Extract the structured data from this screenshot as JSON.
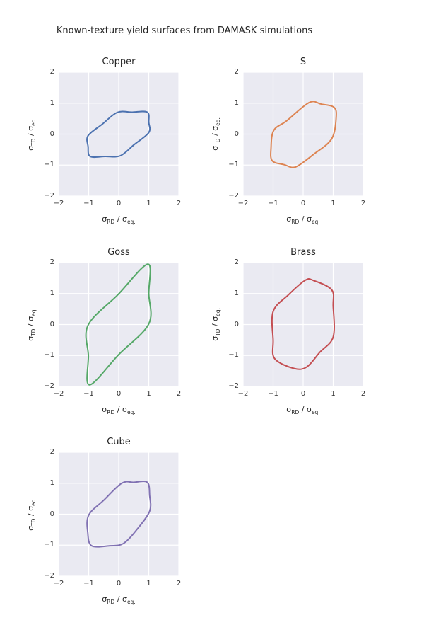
{
  "figure_title": "Known-texture yield surfaces from DAMASK simulations",
  "style": {
    "page_bg": "#ffffff",
    "plot_bg": "#eaeaf2",
    "grid_color": "#ffffff",
    "title_color": "#262626",
    "tick_color": "#333333"
  },
  "chart_data": [
    {
      "type": "line",
      "title": "Copper",
      "color": "#4c72b0",
      "xlabel": "σ_RD / σ_eq.",
      "ylabel": "σ_TD / σ_eq.",
      "xlim": [
        -2,
        2
      ],
      "ylim": [
        -2,
        2
      ],
      "xticks": [
        -2,
        -1,
        0,
        1,
        2
      ],
      "yticks": [
        -2,
        -1,
        0,
        1,
        2
      ],
      "grid": true,
      "legend": false,
      "closed_curve": true,
      "points": [
        [
          -1.02,
          -0.05
        ],
        [
          -0.55,
          0.32
        ],
        [
          -0.05,
          0.7
        ],
        [
          0.45,
          0.71
        ],
        [
          0.95,
          0.71
        ],
        [
          1.0,
          0.38
        ],
        [
          1.0,
          0.05
        ],
        [
          0.5,
          -0.35
        ],
        [
          0.05,
          -0.7
        ],
        [
          -0.45,
          -0.72
        ],
        [
          -0.95,
          -0.72
        ],
        [
          -1.02,
          -0.4
        ]
      ]
    },
    {
      "type": "line",
      "title": "S",
      "color": "#dd8452",
      "xlabel": "σ_RD / σ_eq.",
      "ylabel": "σ_TD / σ_eq.",
      "xlim": [
        -2,
        2
      ],
      "ylim": [
        -2,
        2
      ],
      "xticks": [
        -2,
        -1,
        0,
        1,
        2
      ],
      "yticks": [
        -2,
        -1,
        0,
        1,
        2
      ],
      "grid": true,
      "legend": false,
      "closed_curve": true,
      "points": [
        [
          -0.98,
          0.12
        ],
        [
          -0.55,
          0.43
        ],
        [
          0.2,
          1.02
        ],
        [
          0.6,
          0.97
        ],
        [
          1.02,
          0.87
        ],
        [
          1.1,
          0.56
        ],
        [
          0.95,
          -0.15
        ],
        [
          0.35,
          -0.65
        ],
        [
          -0.25,
          -1.06
        ],
        [
          -0.62,
          -0.99
        ],
        [
          -1.03,
          -0.86
        ],
        [
          -1.07,
          -0.45
        ]
      ]
    },
    {
      "type": "line",
      "title": "Goss",
      "color": "#55a868",
      "xlabel": "σ_RD / σ_eq.",
      "ylabel": "σ_TD / σ_eq.",
      "xlim": [
        -2,
        2
      ],
      "ylim": [
        -2,
        2
      ],
      "xticks": [
        -2,
        -1,
        0,
        1,
        2
      ],
      "yticks": [
        -2,
        -1,
        0,
        1,
        2
      ],
      "grid": true,
      "legend": false,
      "closed_curve": true,
      "points": [
        [
          -1.02,
          -0.02
        ],
        [
          -0.02,
          0.97
        ],
        [
          0.97,
          1.95
        ],
        [
          1.0,
          1.0
        ],
        [
          1.0,
          0.02
        ],
        [
          0.0,
          -0.97
        ],
        [
          -0.97,
          -1.95
        ],
        [
          -1.01,
          -1.0
        ]
      ]
    },
    {
      "type": "line",
      "title": "Brass",
      "color": "#c44e52",
      "xlabel": "σ_RD / σ_eq.",
      "ylabel": "σ_TD / σ_eq.",
      "xlim": [
        -2,
        2
      ],
      "ylim": [
        -2,
        2
      ],
      "xticks": [
        -2,
        -1,
        0,
        1,
        2
      ],
      "yticks": [
        -2,
        -1,
        0,
        1,
        2
      ],
      "grid": true,
      "legend": false,
      "closed_curve": true,
      "points": [
        [
          0.07,
          1.43
        ],
        [
          0.35,
          1.42
        ],
        [
          0.95,
          1.12
        ],
        [
          1.0,
          0.6
        ],
        [
          1.0,
          -0.4
        ],
        [
          0.55,
          -0.9
        ],
        [
          0.12,
          -1.37
        ],
        [
          -0.3,
          -1.42
        ],
        [
          -0.95,
          -1.1
        ],
        [
          -1.0,
          -0.5
        ],
        [
          -1.0,
          0.42
        ],
        [
          -0.5,
          0.95
        ]
      ]
    },
    {
      "type": "line",
      "title": "Cube",
      "color": "#8172b3",
      "xlabel": "σ_RD / σ_eq.",
      "ylabel": "σ_TD / σ_eq.",
      "xlim": [
        -2,
        2
      ],
      "ylim": [
        -2,
        2
      ],
      "xticks": [
        -2,
        -1,
        0,
        1,
        2
      ],
      "yticks": [
        -2,
        -1,
        0,
        1,
        2
      ],
      "grid": true,
      "legend": false,
      "closed_curve": true,
      "points": [
        [
          -1.0,
          -0.03
        ],
        [
          -0.5,
          0.45
        ],
        [
          0.1,
          1.0
        ],
        [
          0.5,
          1.03
        ],
        [
          0.95,
          1.03
        ],
        [
          1.03,
          0.6
        ],
        [
          1.03,
          0.1
        ],
        [
          0.6,
          -0.5
        ],
        [
          0.15,
          -0.95
        ],
        [
          -0.3,
          -1.02
        ],
        [
          -0.9,
          -1.02
        ],
        [
          -1.03,
          -0.6
        ]
      ]
    }
  ]
}
